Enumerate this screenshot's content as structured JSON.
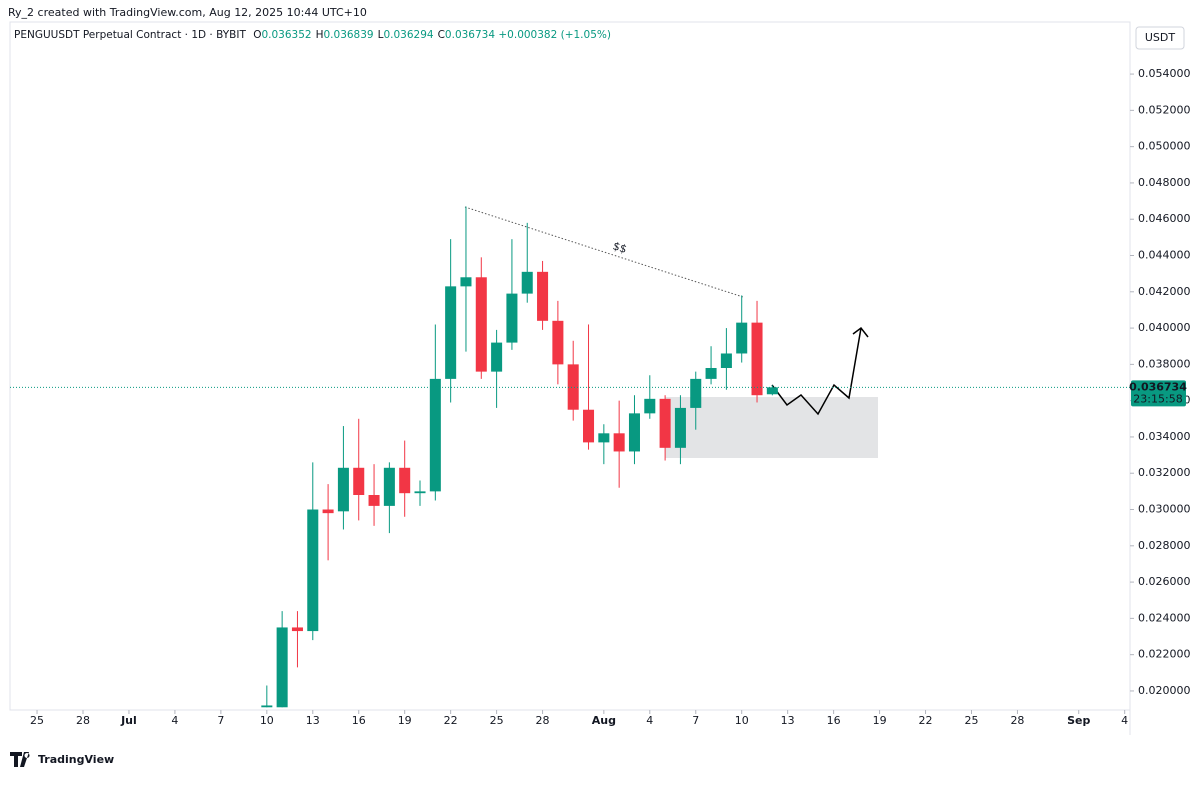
{
  "header": {
    "credit": "Ry_2 created with TradingView.com, Aug 12, 2025 10:44 UTC+10"
  },
  "brand": "TradingView",
  "chart_data": {
    "type": "candlestick",
    "title": "PENGUUSDT Perpetual Contract · 1D · BYBIT",
    "ohlc_labels": [
      "O",
      "H",
      "L",
      "C"
    ],
    "change": "+0.000382 (+1.05%)",
    "currency": "USDT",
    "countdown": "23:15:58",
    "annotation": "$$",
    "up_color": "#089981",
    "down_color": "#f23645",
    "x": [
      "2025-07-10",
      "2025-07-11",
      "2025-07-12",
      "2025-07-13",
      "2025-07-14",
      "2025-07-15",
      "2025-07-16",
      "2025-07-17",
      "2025-07-18",
      "2025-07-19",
      "2025-07-20",
      "2025-07-21",
      "2025-07-22",
      "2025-07-23",
      "2025-07-24",
      "2025-07-25",
      "2025-07-26",
      "2025-07-27",
      "2025-07-28",
      "2025-07-29",
      "2025-07-30",
      "2025-07-31",
      "2025-08-01",
      "2025-08-02",
      "2025-08-03",
      "2025-08-04",
      "2025-08-05",
      "2025-08-06",
      "2025-08-07",
      "2025-08-08",
      "2025-08-09",
      "2025-08-10",
      "2025-08-11",
      "2025-08-12"
    ],
    "open": [
      0.0191,
      0.0191,
      0.0235,
      0.0233,
      0.03,
      0.0299,
      0.0323,
      0.0308,
      0.0302,
      0.0323,
      0.0309,
      0.031,
      0.0372,
      0.0423,
      0.0428,
      0.0376,
      0.0392,
      0.0419,
      0.0431,
      0.0404,
      0.038,
      0.0355,
      0.0337,
      0.0342,
      0.0332,
      0.0353,
      0.0361,
      0.0334,
      0.0356,
      0.0372,
      0.0378,
      0.0386,
      0.0403,
      0.036352
    ],
    "high": [
      0.0203,
      0.0244,
      0.0244,
      0.0326,
      0.0314,
      0.0346,
      0.035,
      0.0325,
      0.0326,
      0.0338,
      0.0316,
      0.0402,
      0.0449,
      0.0467,
      0.0439,
      0.0399,
      0.0449,
      0.0458,
      0.0437,
      0.0415,
      0.0393,
      0.0402,
      0.0347,
      0.036,
      0.0363,
      0.0374,
      0.0363,
      0.0363,
      0.0376,
      0.039,
      0.04,
      0.0418,
      0.0415,
      0.036839
    ],
    "low": [
      0.0191,
      0.0191,
      0.0213,
      0.0228,
      0.0272,
      0.0289,
      0.0294,
      0.0291,
      0.0287,
      0.0296,
      0.0302,
      0.0305,
      0.0359,
      0.0387,
      0.0372,
      0.0356,
      0.0388,
      0.0414,
      0.0399,
      0.0369,
      0.0349,
      0.0333,
      0.0325,
      0.0312,
      0.0325,
      0.035,
      0.0327,
      0.0325,
      0.0344,
      0.0369,
      0.0366,
      0.0381,
      0.0359,
      0.036294
    ],
    "close": [
      0.0192,
      0.0235,
      0.0233,
      0.03,
      0.0298,
      0.0323,
      0.0308,
      0.0302,
      0.0323,
      0.0309,
      0.031,
      0.0372,
      0.0423,
      0.0428,
      0.0376,
      0.0392,
      0.0419,
      0.0431,
      0.0404,
      0.038,
      0.0355,
      0.0337,
      0.0342,
      0.0332,
      0.0353,
      0.0361,
      0.0334,
      0.0356,
      0.0372,
      0.0378,
      0.0386,
      0.0403,
      0.0363,
      0.036734
    ],
    "xlim": [
      "2025-06-23",
      "2025-09-05"
    ],
    "xticks": [
      {
        "value": "2025-06-25",
        "label": "25"
      },
      {
        "value": "2025-06-28",
        "label": "28"
      },
      {
        "value": "2025-07-01",
        "label": "Jul"
      },
      {
        "value": "2025-07-04",
        "label": "4"
      },
      {
        "value": "2025-07-07",
        "label": "7"
      },
      {
        "value": "2025-07-10",
        "label": "10"
      },
      {
        "value": "2025-07-13",
        "label": "13"
      },
      {
        "value": "2025-07-16",
        "label": "16"
      },
      {
        "value": "2025-07-19",
        "label": "19"
      },
      {
        "value": "2025-07-22",
        "label": "22"
      },
      {
        "value": "2025-07-25",
        "label": "25"
      },
      {
        "value": "2025-07-28",
        "label": "28"
      },
      {
        "value": "2025-08-01",
        "label": "Aug"
      },
      {
        "value": "2025-08-04",
        "label": "4"
      },
      {
        "value": "2025-08-07",
        "label": "7"
      },
      {
        "value": "2025-08-10",
        "label": "10"
      },
      {
        "value": "2025-08-13",
        "label": "13"
      },
      {
        "value": "2025-08-16",
        "label": "16"
      },
      {
        "value": "2025-08-19",
        "label": "19"
      },
      {
        "value": "2025-08-22",
        "label": "22"
      },
      {
        "value": "2025-08-25",
        "label": "25"
      },
      {
        "value": "2025-08-28",
        "label": "28"
      },
      {
        "value": "2025-09-01",
        "label": "Sep"
      },
      {
        "value": "2025-09-04",
        "label": "4"
      }
    ],
    "ylim": [
      0.01895,
      0.05687
    ],
    "yticks": [
      {
        "value": 0.02,
        "label": "0.020000"
      },
      {
        "value": 0.022,
        "label": "0.022000"
      },
      {
        "value": 0.024,
        "label": "0.024000"
      },
      {
        "value": 0.026,
        "label": "0.026000"
      },
      {
        "value": 0.028,
        "label": "0.028000"
      },
      {
        "value": 0.03,
        "label": "0.030000"
      },
      {
        "value": 0.032,
        "label": "0.032000"
      },
      {
        "value": 0.034,
        "label": "0.034000"
      },
      {
        "value": 0.036,
        "label": "0.036000"
      },
      {
        "value": 0.038,
        "label": "0.038000"
      },
      {
        "value": 0.04,
        "label": "0.040000"
      },
      {
        "value": 0.042,
        "label": "0.042000"
      },
      {
        "value": 0.044,
        "label": "0.044000"
      },
      {
        "value": 0.046,
        "label": "0.046000"
      },
      {
        "value": 0.048,
        "label": "0.048000"
      },
      {
        "value": 0.05,
        "label": "0.050000"
      },
      {
        "value": 0.052,
        "label": "0.052000"
      },
      {
        "value": 0.054,
        "label": "0.054000"
      }
    ]
  }
}
